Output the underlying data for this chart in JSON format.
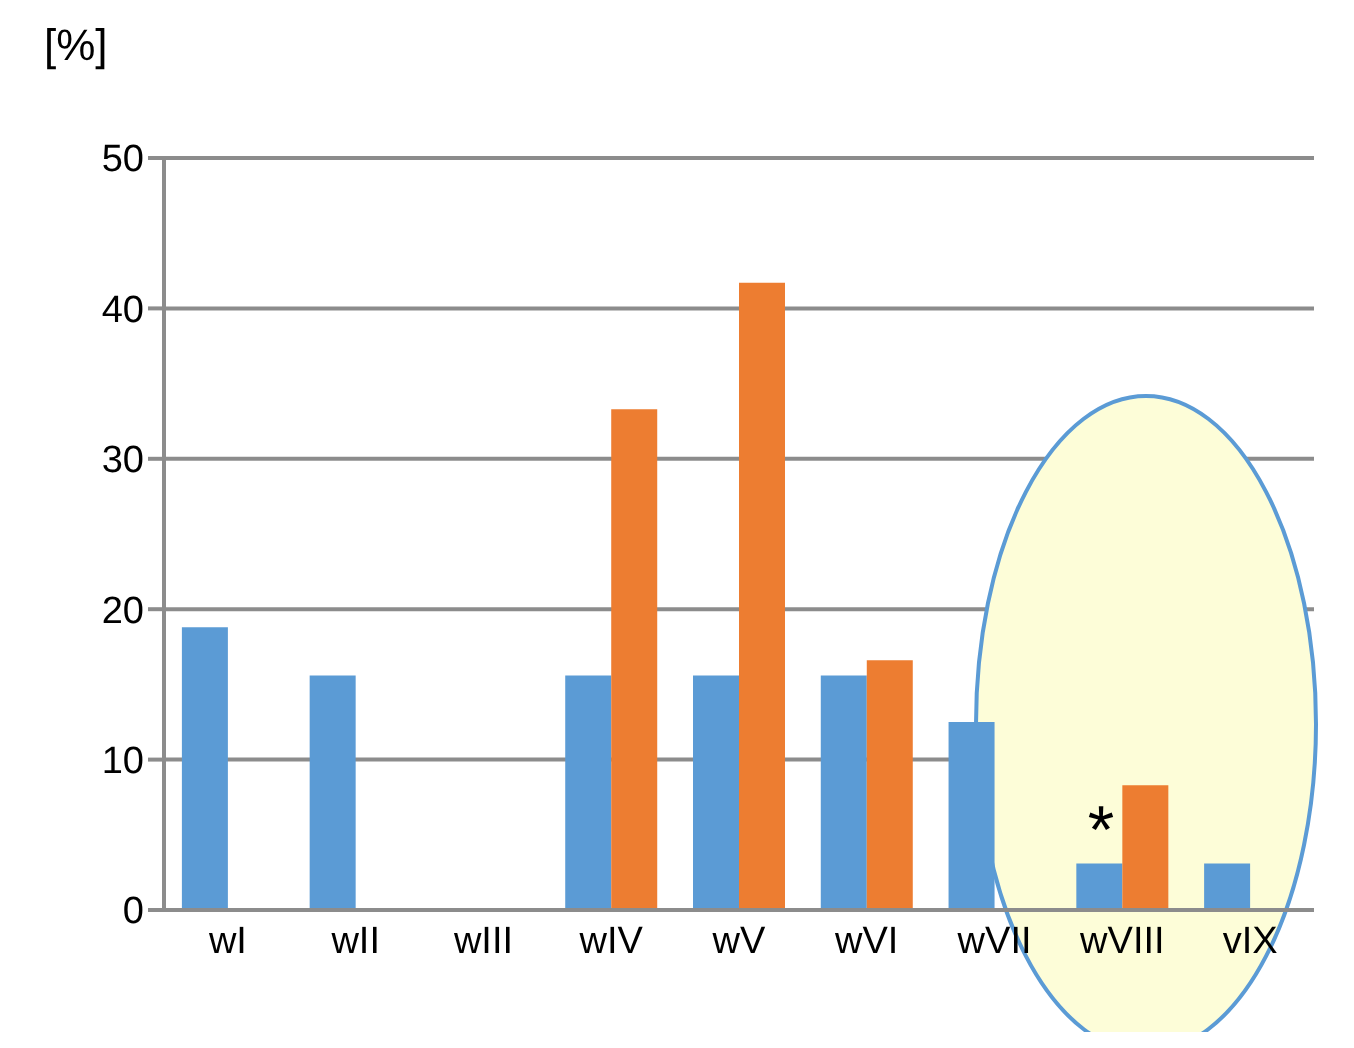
{
  "chart_data": {
    "type": "bar",
    "ylabel": "[%]",
    "categories": [
      "wI",
      "wII",
      "wIII",
      "wIV",
      "wV",
      "wVI",
      "wVII",
      "wVIII",
      "vIX"
    ],
    "series": [
      {
        "color": "#5b9bd5",
        "values": [
          18.8,
          15.6,
          null,
          15.6,
          15.6,
          15.6,
          12.5,
          3.1,
          3.1
        ]
      },
      {
        "color": "#ed7d31",
        "values": [
          null,
          null,
          null,
          33.3,
          41.7,
          16.6,
          null,
          8.3,
          null
        ]
      }
    ],
    "ylim": [
      0,
      50
    ],
    "yticks": [
      0,
      10,
      20,
      30,
      40,
      50
    ],
    "grid": "y",
    "legend": false,
    "annotations": [
      {
        "text": "*",
        "x": "wVIII",
        "y": 8.3
      }
    ]
  }
}
